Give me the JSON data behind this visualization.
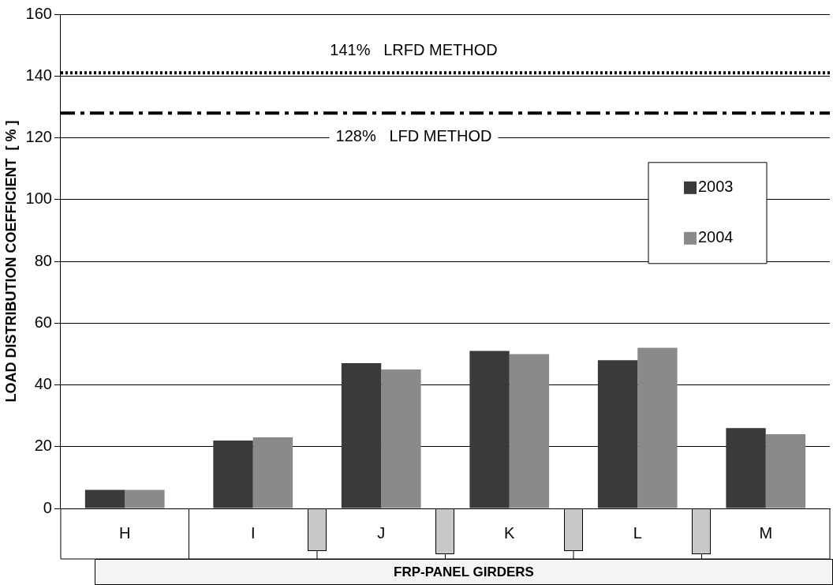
{
  "chart_data": {
    "type": "bar",
    "xlabel": "FRP-PANEL  GIRDERS",
    "ylabel": "LOAD DISTRIBUTION COEFFICIENT  [ % ]",
    "categories": [
      "H",
      "I",
      "J",
      "K",
      "L",
      "M"
    ],
    "series": [
      {
        "name": "2003",
        "color": "#3a3a3a",
        "values": [
          6,
          22,
          47,
          51,
          48,
          26
        ]
      },
      {
        "name": "2004",
        "color": "#8a8a8a",
        "values": [
          6,
          23,
          45,
          50,
          52,
          24
        ]
      }
    ],
    "ylim": [
      0,
      160
    ],
    "yticks": [
      0,
      20,
      40,
      60,
      80,
      100,
      120,
      140,
      160
    ],
    "grid": "y",
    "legend": "right",
    "ref_lines": [
      {
        "axis": "y",
        "value": 141,
        "label": "141%   LRFD METHOD",
        "line_style": "dotted",
        "color": "#000000"
      },
      {
        "axis": "y",
        "value": 128,
        "label": "128%   LFD METHOD",
        "line_style": "dashed",
        "color": "#000000"
      }
    ]
  }
}
